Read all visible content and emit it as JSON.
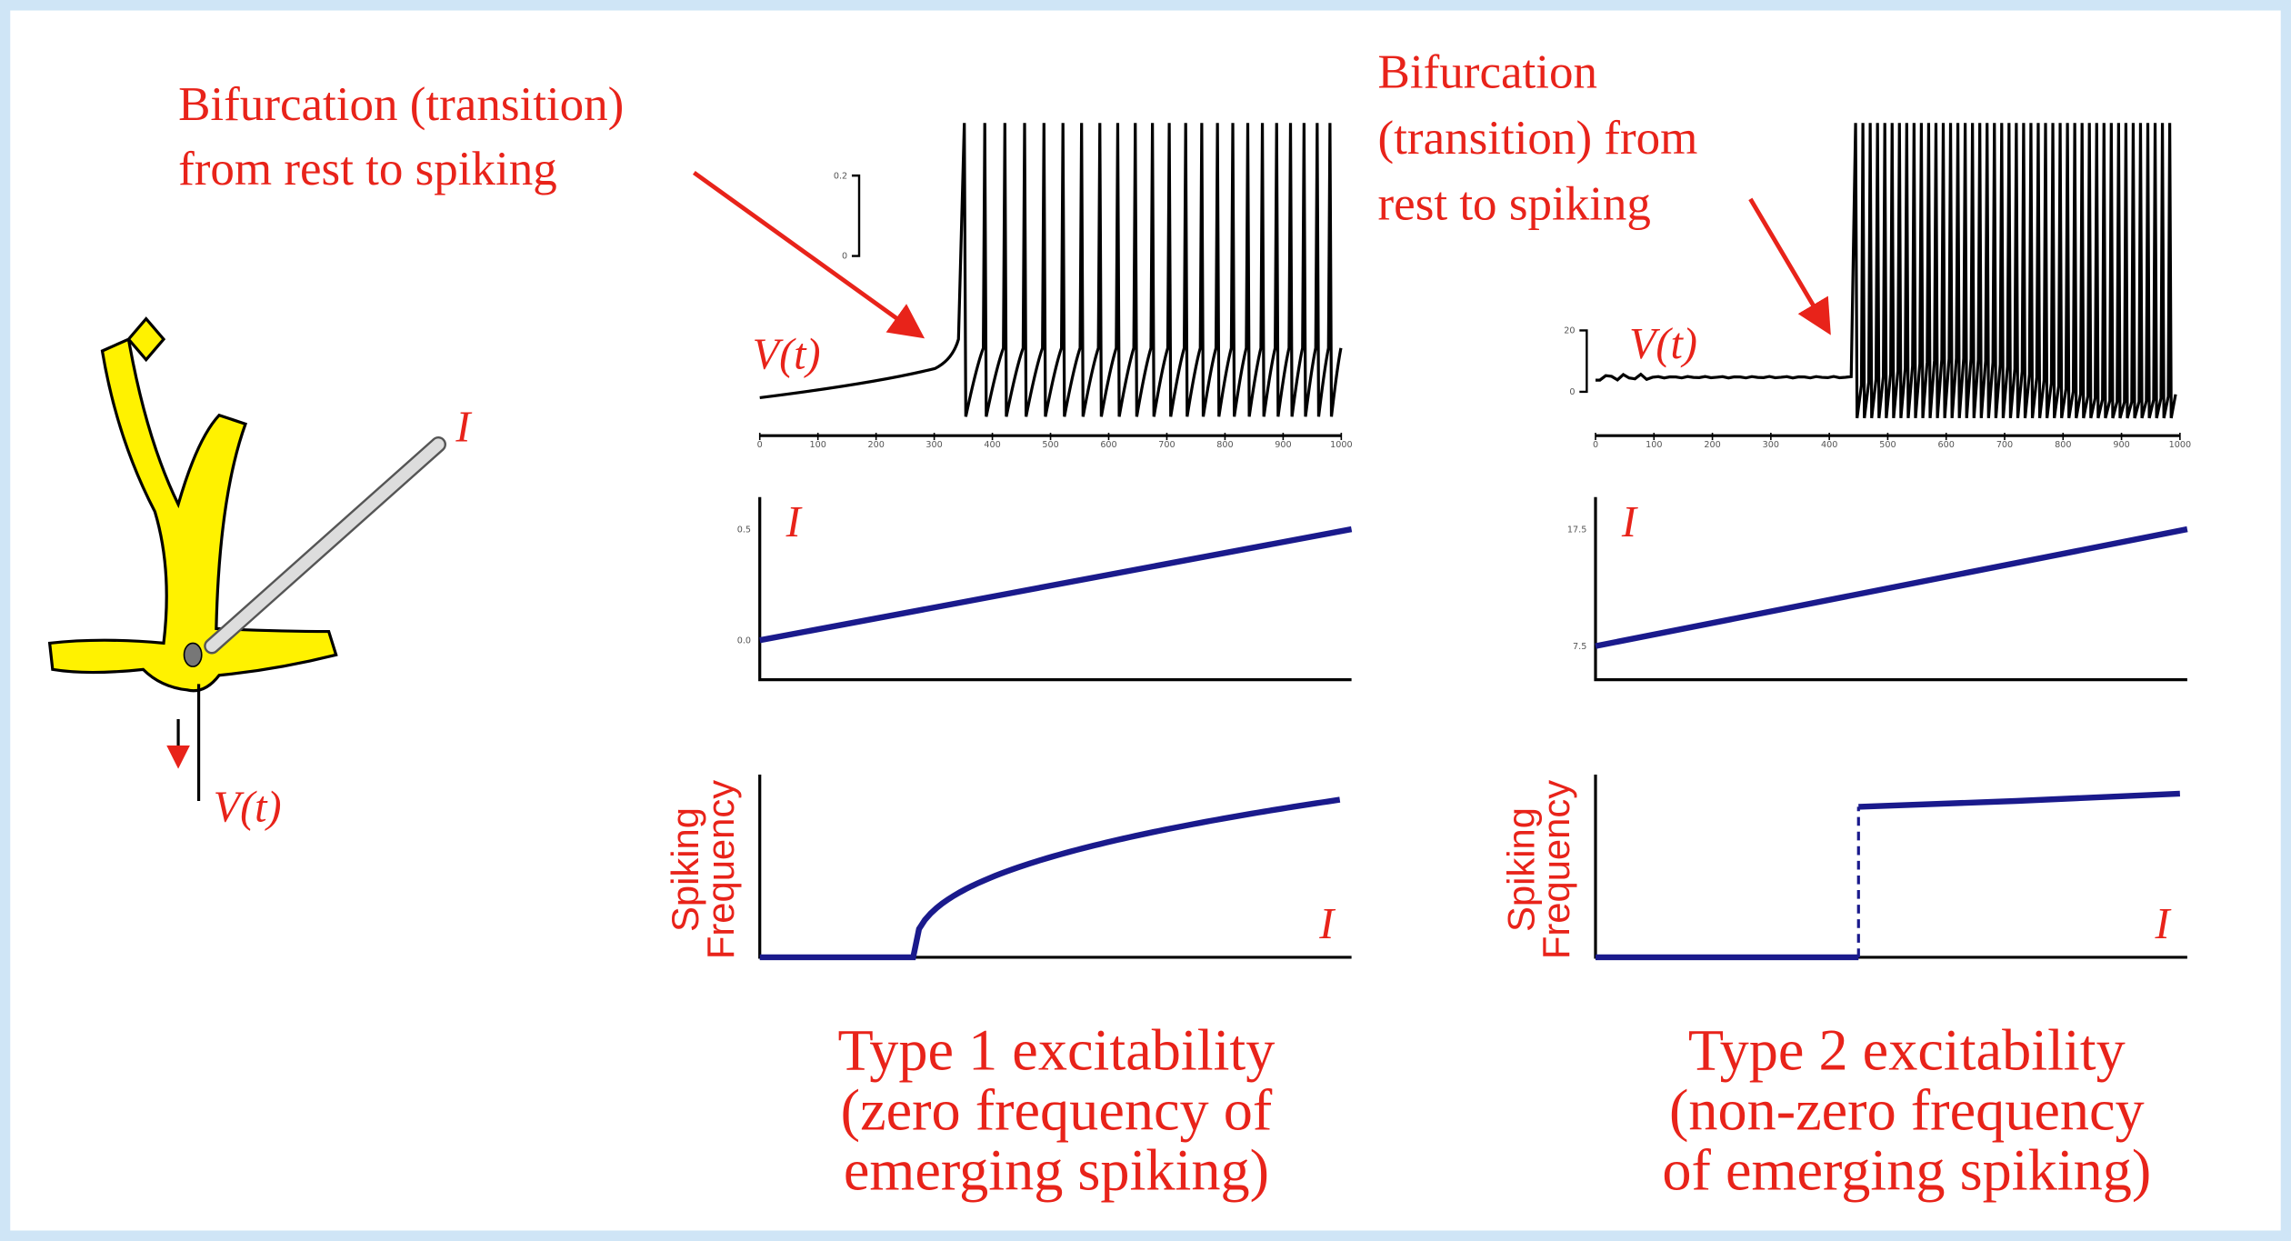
{
  "left_annotation": {
    "lines": [
      "Bifurcation (transition)",
      "from rest to spiking"
    ]
  },
  "right_annotation": {
    "lines": [
      "Bifurcation",
      "(transition) from",
      "rest to spiking"
    ]
  },
  "neuron": {
    "current_label": "I",
    "voltage_label": "V(t)"
  },
  "panels": [
    {
      "voltage_label": "V(t)",
      "scale_labels": [
        "0.2",
        "0"
      ],
      "time_ticks": [
        "0",
        "100",
        "200",
        "300",
        "400",
        "500",
        "600",
        "700",
        "800",
        "900",
        "1000"
      ],
      "current_label": "I",
      "current_ticks": [
        "0.5",
        "0.0"
      ],
      "frequency_axis_label": [
        "Spiking",
        "Frequency"
      ],
      "frequency_x_label": "I",
      "caption": [
        "Type 1 excitability",
        "(zero frequency of",
        "emerging spiking)"
      ]
    },
    {
      "voltage_label": "V(t)",
      "scale_labels": [
        "20",
        "0"
      ],
      "time_ticks": [
        "0",
        "100",
        "200",
        "300",
        "400",
        "500",
        "600",
        "700",
        "800",
        "900",
        "1000"
      ],
      "current_label": "I",
      "current_ticks": [
        "17.5",
        "7.5"
      ],
      "frequency_axis_label": [
        "Spiking",
        "Frequency"
      ],
      "frequency_x_label": "I",
      "caption": [
        "Type 2 excitability",
        "(non-zero frequency",
        "of emerging spiking)"
      ]
    }
  ]
}
